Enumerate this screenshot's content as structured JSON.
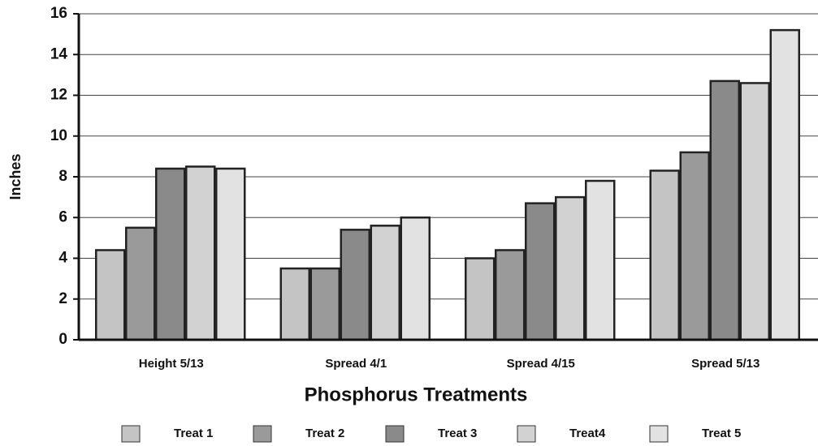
{
  "chart_data": {
    "type": "bar",
    "x_label": "Phosphorus Treatments",
    "y_label": "Inches",
    "categories": [
      "Height 5/13",
      "Spread 4/1",
      "Spread 4/15",
      "Spread 5/13"
    ],
    "series": [
      {
        "name": "Treat 1",
        "color": "#c4c4c4",
        "values": [
          4.4,
          3.5,
          4.0,
          8.3
        ]
      },
      {
        "name": "Treat 2",
        "color": "#9a9a9a",
        "values": [
          5.5,
          3.5,
          4.4,
          9.2
        ]
      },
      {
        "name": "Treat 3",
        "color": "#8a8a8a",
        "values": [
          8.4,
          5.4,
          6.7,
          12.7
        ]
      },
      {
        "name": "Treat4",
        "color": "#d2d2d2",
        "values": [
          8.5,
          5.6,
          7.0,
          12.6
        ]
      },
      {
        "name": "Treat 5",
        "color": "#e2e2e2",
        "values": [
          8.4,
          6.0,
          7.8,
          15.2
        ]
      }
    ],
    "ylim": [
      0,
      16
    ],
    "yticks": [
      0,
      2,
      4,
      6,
      8,
      10,
      12,
      14,
      16
    ],
    "grid": true
  }
}
